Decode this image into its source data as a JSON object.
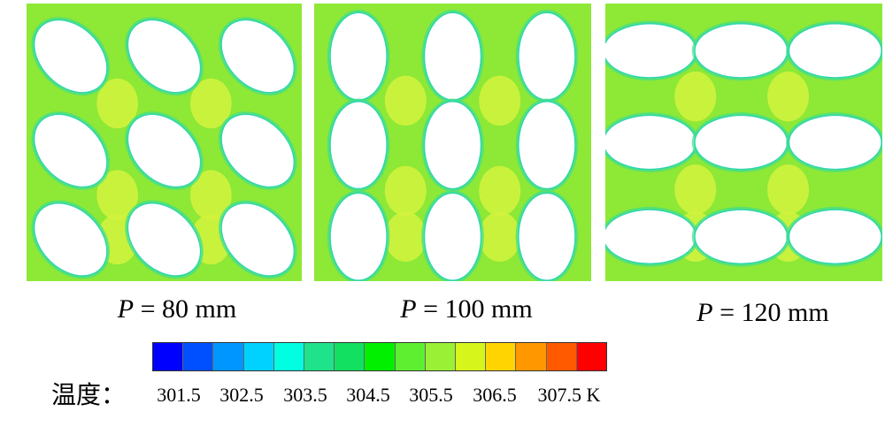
{
  "panels": [
    {
      "caption_var": "P",
      "caption_text": "= 80 mm",
      "hole_angle": 45,
      "base_color": "#8ee836",
      "hot_color": "#d4f33e",
      "edge_color": "#3fe08b",
      "holes": [
        [
          0.16,
          0.19
        ],
        [
          0.5,
          0.19
        ],
        [
          0.84,
          0.19
        ],
        [
          0.16,
          0.53
        ],
        [
          0.5,
          0.53
        ],
        [
          0.84,
          0.53
        ],
        [
          0.16,
          0.85
        ],
        [
          0.5,
          0.85
        ],
        [
          0.84,
          0.85
        ]
      ],
      "hole_r": [
        0.15,
        0.105
      ]
    },
    {
      "caption_var": "P",
      "caption_text": "= 100 mm",
      "hole_angle": 0,
      "base_color": "#8ee836",
      "hot_color": "#d4f33e",
      "edge_color": "#3fe08b",
      "holes": [
        [
          0.16,
          0.19
        ],
        [
          0.5,
          0.19
        ],
        [
          0.84,
          0.19
        ],
        [
          0.16,
          0.51
        ],
        [
          0.5,
          0.51
        ],
        [
          0.84,
          0.51
        ],
        [
          0.16,
          0.84
        ],
        [
          0.5,
          0.84
        ],
        [
          0.84,
          0.84
        ]
      ],
      "hole_r": [
        0.1,
        0.155
      ]
    },
    {
      "caption_var": "P",
      "caption_text": "= 120 mm",
      "hole_angle": 0,
      "base_color": "#8ee836",
      "hot_color": "#d4f33e",
      "edge_color": "#3fe08b",
      "holes": [
        [
          0.16,
          0.17
        ],
        [
          0.49,
          0.17
        ],
        [
          0.83,
          0.17
        ],
        [
          0.16,
          0.5
        ],
        [
          0.49,
          0.5
        ],
        [
          0.83,
          0.5
        ],
        [
          0.16,
          0.84
        ],
        [
          0.49,
          0.84
        ],
        [
          0.83,
          0.84
        ]
      ],
      "hole_r": [
        0.165,
        0.095
      ]
    }
  ],
  "legend": {
    "label": "温度：",
    "colors": [
      "#0000ff",
      "#0050ff",
      "#0096ff",
      "#00d2ff",
      "#00ffe0",
      "#1fe38b",
      "#12e060",
      "#00f000",
      "#5ef030",
      "#99f035",
      "#d6f51a",
      "#ffd400",
      "#ff9800",
      "#ff5a00",
      "#ff0000"
    ],
    "ticks": [
      "301.5",
      "302.5",
      "303.5",
      "304.5",
      "305.5",
      "306.5",
      "307.5 K"
    ]
  }
}
